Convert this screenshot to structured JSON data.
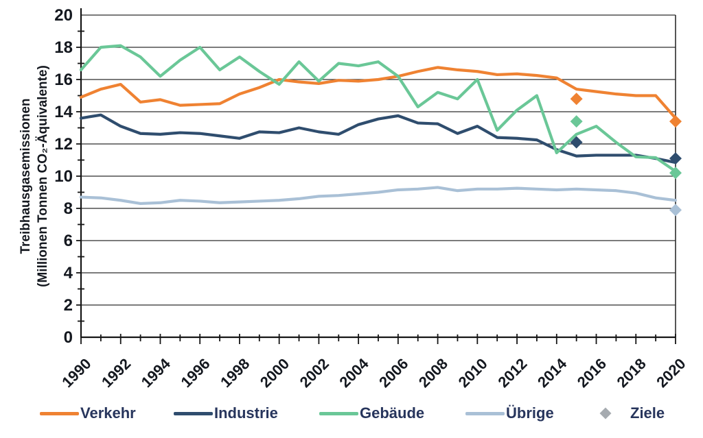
{
  "chart_data": {
    "type": "line",
    "title": "",
    "ylabel_line1": "Treibhausgasemissionen",
    "ylabel_line2": "(Millionen Tonnen CO₂-Äquivalente)",
    "ylim": [
      0,
      20
    ],
    "ytick_step": 2,
    "ytick_labels": [
      "0",
      "2",
      "4",
      "6",
      "8",
      "10",
      "12",
      "14",
      "16",
      "18",
      "20"
    ],
    "x_range": [
      1990,
      2020
    ],
    "x": [
      1990,
      1991,
      1992,
      1993,
      1994,
      1995,
      1996,
      1997,
      1998,
      1999,
      2000,
      2001,
      2002,
      2003,
      2004,
      2005,
      2006,
      2007,
      2008,
      2009,
      2010,
      2011,
      2012,
      2013,
      2014,
      2015,
      2016,
      2017,
      2018,
      2019,
      2020
    ],
    "xtick_labels": [
      "1990",
      "1992",
      "1994",
      "1996",
      "1998",
      "2000",
      "2002",
      "2004",
      "2006",
      "2008",
      "2010",
      "2012",
      "2014",
      "2016",
      "2018",
      "2020"
    ],
    "grid": true,
    "legend_position": "bottom",
    "series": [
      {
        "name": "Verkehr",
        "color": "#EF8232",
        "values": [
          14.9,
          15.4,
          15.7,
          14.6,
          14.75,
          14.4,
          14.45,
          14.5,
          15.1,
          15.5,
          16.0,
          15.85,
          15.75,
          15.95,
          15.9,
          16.0,
          16.2,
          16.5,
          16.75,
          16.6,
          16.5,
          16.3,
          16.35,
          16.25,
          16.1,
          15.4,
          15.25,
          15.1,
          15.0,
          15.0,
          13.6
        ]
      },
      {
        "name": "Industrie",
        "color": "#2F4D6E",
        "values": [
          13.6,
          13.8,
          13.1,
          12.65,
          12.6,
          12.7,
          12.65,
          12.5,
          12.35,
          12.75,
          12.7,
          13.0,
          12.75,
          12.6,
          13.2,
          13.55,
          13.75,
          13.3,
          13.25,
          12.65,
          13.1,
          12.4,
          12.35,
          12.25,
          11.65,
          11.25,
          11.3,
          11.3,
          11.3,
          11.1,
          10.85
        ]
      },
      {
        "name": "Gebäude",
        "color": "#6AC797",
        "values": [
          16.6,
          18.0,
          18.1,
          17.4,
          16.2,
          17.2,
          18.0,
          16.6,
          17.4,
          16.5,
          15.7,
          17.1,
          15.9,
          17.0,
          16.85,
          17.1,
          16.2,
          14.3,
          15.2,
          14.8,
          16.0,
          12.85,
          14.1,
          15.0,
          11.45,
          12.6,
          13.1,
          12.1,
          11.2,
          11.15,
          10.3
        ]
      },
      {
        "name": "Übrige",
        "color": "#A9C0D6",
        "values": [
          8.7,
          8.65,
          8.5,
          8.3,
          8.35,
          8.5,
          8.45,
          8.35,
          8.4,
          8.45,
          8.5,
          8.6,
          8.75,
          8.8,
          8.9,
          9.0,
          9.15,
          9.2,
          9.3,
          9.1,
          9.2,
          9.2,
          9.25,
          9.2,
          9.15,
          9.2,
          9.15,
          9.1,
          8.95,
          8.65,
          8.5
        ]
      }
    ],
    "targets": {
      "name": "Ziele",
      "marker": "diamond",
      "points": [
        {
          "year": 2015,
          "series": "Verkehr",
          "value": 14.8,
          "color": "#EF8232"
        },
        {
          "year": 2015,
          "series": "Gebäude",
          "value": 13.4,
          "color": "#6AC797"
        },
        {
          "year": 2015,
          "series": "Industrie",
          "value": 12.1,
          "color": "#2F4D6E"
        },
        {
          "year": 2020,
          "series": "Verkehr",
          "value": 13.4,
          "color": "#EF8232"
        },
        {
          "year": 2020,
          "series": "Industrie",
          "value": 11.1,
          "color": "#2F4D6E"
        },
        {
          "year": 2020,
          "series": "Gebäude",
          "value": 10.2,
          "color": "#6AC797"
        },
        {
          "year": 2020,
          "series": "Übrige",
          "value": 7.9,
          "color": "#A9C0D6"
        }
      ]
    },
    "legend": [
      {
        "label": "Verkehr",
        "marker": "line",
        "color": "#EF8232"
      },
      {
        "label": "Industrie",
        "marker": "line",
        "color": "#2F4D6E"
      },
      {
        "label": "Gebäude",
        "marker": "line",
        "color": "#6AC797"
      },
      {
        "label": "Übrige",
        "marker": "line",
        "color": "#A9C0D6"
      },
      {
        "label": "Ziele",
        "marker": "diamond",
        "color": "#A6ABB0"
      }
    ]
  }
}
